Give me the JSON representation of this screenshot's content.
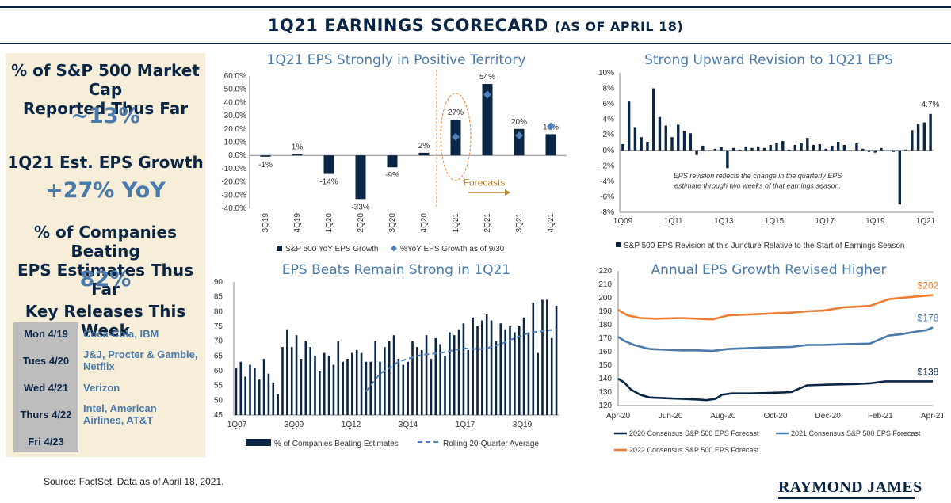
{
  "header": {
    "title_main": "1Q21 EARNINGS SCORECARD",
    "title_sub": "(AS OF APRIL 18)"
  },
  "sidebar": {
    "kpis": [
      {
        "label_line1": "% of S&P 500 Market Cap",
        "label_line2": "Reported Thus Far",
        "value": "~13%"
      },
      {
        "label_line1": "1Q21 Est. EPS Growth",
        "label_line2": "",
        "value": "+27% YoY"
      },
      {
        "label_line1": "% of Companies Beating",
        "label_line2": "EPS Estimates Thus Far",
        "value": "82%"
      }
    ],
    "releases_title": "Key Releases This Week",
    "releases": [
      {
        "day": "Mon 4/19",
        "companies": [
          "Coca-Cola, IBM"
        ]
      },
      {
        "day": "Tues 4/20",
        "companies": [
          "J&J, Procter & Gamble,",
          "Netflix"
        ]
      },
      {
        "day": "Wed 4/21",
        "companies": [
          "Verizon"
        ]
      },
      {
        "day": "Thurs 4/22",
        "companies": [
          "Intel, American",
          "Airlines, AT&T"
        ]
      },
      {
        "day": "Fri 4/23",
        "companies": []
      }
    ]
  },
  "footer": {
    "source": "Source: FactSet. Data as of April 18, 2021.",
    "brand": "RAYMOND JAMES"
  },
  "colors": {
    "navy": "#0b2545",
    "accent_blue": "#4a7aab",
    "diamond": "#4f81bd",
    "orange": "#ed7d31",
    "sidebar_bg": "#f6eed9",
    "table_day_bg": "#bdbdbd"
  },
  "chart_data": [
    {
      "id": "eps_growth",
      "type": "bar",
      "title": "1Q21 EPS Strongly in Positive Territory",
      "categories": [
        "3Q19",
        "4Q19",
        "1Q20",
        "2Q20",
        "3Q20",
        "4Q20",
        "1Q21",
        "2Q21",
        "3Q21",
        "4Q21"
      ],
      "series": [
        {
          "name": "S&P 500 YoY EPS Growth",
          "values": [
            -1,
            1,
            -14,
            -33,
            -9,
            2,
            27,
            54,
            20,
            16
          ],
          "labels": [
            "-1%",
            "1%",
            "-14%",
            "-33%",
            "-9%",
            "2%",
            "27%",
            "54%",
            "20%",
            "16%"
          ]
        },
        {
          "name": "%YoY EPS Growth as of 9/30",
          "marker": "diamond",
          "values": [
            null,
            null,
            null,
            null,
            null,
            null,
            14,
            46,
            15,
            22
          ]
        }
      ],
      "ylim": [
        -40,
        60
      ],
      "yticks": [
        "60.0%",
        "50.0%",
        "40.0%",
        "30.0%",
        "20.0%",
        "10.0%",
        "0.0%",
        "-10.0%",
        "-20.0%",
        "-30.0%",
        "-40.0%"
      ],
      "annotation": "Forecasts"
    },
    {
      "id": "eps_revision",
      "type": "bar",
      "title": "Strong Upward Revision to 1Q21 EPS",
      "xticks": [
        "1Q09",
        "1Q11",
        "1Q13",
        "1Q15",
        "1Q17",
        "1Q19",
        "1Q21"
      ],
      "series": [
        {
          "name": "S&P 500 EPS Revision at this Juncture Relative to the Start of Earnings Season",
          "values": [
            0.8,
            6.3,
            3.0,
            1.7,
            1.1,
            8.0,
            4.3,
            3.2,
            1.7,
            3.3,
            2.5,
            2.2,
            -0.6,
            0.6,
            -0.1,
            0.2,
            0.4,
            -2.3,
            0.3,
            0.1,
            0.5,
            0.3,
            0.5,
            0.3,
            0.7,
            0.9,
            1.2,
            0.1,
            0.7,
            1.0,
            1.6,
            0.7,
            0.8,
            0.2,
            0.6,
            1.1,
            0.7,
            -0.1,
            0.9,
            0.2,
            -0.2,
            -0.3,
            0.3,
            -0.1,
            -0.2,
            -7.0,
            0.1,
            2.6,
            3.4,
            3.6,
            4.7
          ]
        }
      ],
      "ylim": [
        -8,
        10
      ],
      "yticks": [
        "10%",
        "8%",
        "6%",
        "4%",
        "2%",
        "0%",
        "-2%",
        "-4%",
        "-6%",
        "-8%"
      ],
      "end_label": "4.7%",
      "note_line1": "EPS revision reflects the change in the quarterly EPS",
      "note_line2": "estimate through two weeks of that earnings season."
    },
    {
      "id": "eps_beats",
      "type": "bar",
      "title": "EPS Beats Remain Strong in 1Q21",
      "xticks": [
        "1Q07",
        "3Q09",
        "1Q12",
        "3Q14",
        "1Q17",
        "3Q19"
      ],
      "series": [
        {
          "name": "% of Companies Beating Estimates",
          "values": [
            61,
            63,
            58,
            62,
            61,
            57,
            64,
            59,
            56,
            52,
            68,
            74,
            68,
            72,
            64,
            70,
            68,
            65,
            60,
            66,
            65,
            62,
            70,
            63,
            64,
            66,
            67,
            66,
            63,
            63,
            70,
            63,
            68,
            70,
            72,
            64,
            62,
            63,
            70,
            68,
            67,
            72,
            64,
            71,
            69,
            65,
            73,
            72,
            74,
            76,
            67,
            78,
            75,
            77,
            79,
            77,
            70,
            76,
            74,
            75,
            73,
            75,
            78,
            73,
            83,
            66,
            84,
            84,
            71,
            82
          ]
        },
        {
          "name": "Rolling 20-Quarter Average",
          "style": "dashed",
          "values": [
            53,
            55,
            57,
            59,
            60,
            61,
            62,
            63,
            63.5,
            64,
            64.5,
            65,
            65.3,
            65.5,
            65.7,
            65.8,
            66,
            66.3,
            66.6,
            67,
            67.3,
            67.5,
            67.5,
            67.4,
            67.3,
            67.4,
            67.6,
            68,
            68.5,
            69,
            69.6,
            70.3,
            71,
            71.6,
            72.2,
            72.7,
            73,
            73.2,
            73.4,
            73.6,
            73.8,
            74.2
          ]
        }
      ],
      "ylim": [
        45,
        90
      ],
      "yticks": [
        "90",
        "85",
        "80",
        "75",
        "70",
        "65",
        "60",
        "55",
        "50",
        "45"
      ]
    },
    {
      "id": "annual_eps",
      "type": "line",
      "title": "Annual EPS Growth Revised Higher",
      "xticks": [
        "Apr-20",
        "Jun-20",
        "Aug-20",
        "Oct-20",
        "Dec-20",
        "Feb-21",
        "Apr-21"
      ],
      "series": [
        {
          "name": "2020 Consensus S&P 500 EPS Forecast",
          "color": "#0b2545",
          "x": [
            0,
            0.02,
            0.04,
            0.07,
            0.1,
            0.15,
            0.2,
            0.25,
            0.28,
            0.31,
            0.33,
            0.36,
            0.42,
            0.5,
            0.55,
            0.6,
            0.66,
            0.75,
            0.8,
            0.85,
            0.9,
            1.0
          ],
          "values": [
            140,
            137,
            132,
            128,
            126,
            125.5,
            125,
            124.5,
            124,
            125,
            128,
            129,
            129,
            129.5,
            130,
            135,
            135.5,
            136,
            136.5,
            138,
            138,
            138
          ]
        },
        {
          "name": "2021 Consensus S&P 500 EPS Forecast",
          "color": "#4a7aab",
          "x": [
            0,
            0.02,
            0.05,
            0.1,
            0.15,
            0.2,
            0.25,
            0.3,
            0.35,
            0.45,
            0.55,
            0.6,
            0.65,
            0.72,
            0.8,
            0.86,
            0.9,
            0.95,
            0.98,
            1.0
          ],
          "values": [
            171,
            168,
            165,
            162,
            161.5,
            161,
            161,
            160.5,
            162,
            163,
            163.5,
            165,
            165,
            165.5,
            166,
            172,
            173,
            175,
            176,
            178
          ]
        },
        {
          "name": "2022 Consensus S&P 500 EPS Forecast",
          "color": "#ed7d31",
          "x": [
            0,
            0.03,
            0.07,
            0.12,
            0.2,
            0.25,
            0.3,
            0.35,
            0.45,
            0.55,
            0.6,
            0.65,
            0.72,
            0.8,
            0.86,
            0.9,
            0.95,
            1.0
          ],
          "values": [
            191,
            187,
            185,
            184.5,
            185,
            184.5,
            184,
            187,
            188,
            189,
            190,
            190.5,
            193,
            194,
            199,
            200,
            201,
            202
          ]
        }
      ],
      "ylim": [
        120,
        220
      ],
      "yticks": [
        "220",
        "210",
        "200",
        "190",
        "180",
        "170",
        "160",
        "150",
        "140",
        "130",
        "120"
      ],
      "end_labels": [
        "$202",
        "$178",
        "$138"
      ]
    }
  ]
}
